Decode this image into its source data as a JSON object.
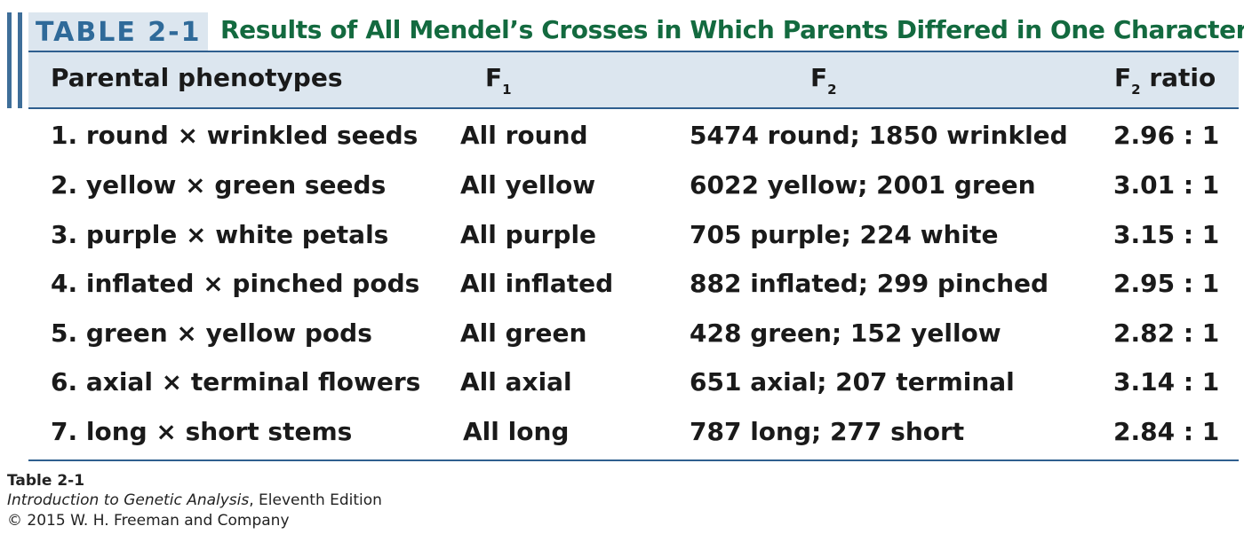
{
  "table_label": "TABLE 2-1",
  "title": "Results of All Mendel’s Crosses in Which Parents Differed in One Character",
  "headers": {
    "parental": "Parental phenotypes",
    "f1_main": "F",
    "f1_sub": "1",
    "f2_main": "F",
    "f2_sub": "2",
    "ratio_main": "F",
    "ratio_sub": "2",
    "ratio_rest": " ratio"
  },
  "rows": [
    {
      "parental": "1.  round × wrinkled seeds",
      "f1": "All round",
      "f2": "5474 round; 1850 wrinkled",
      "ratio": "2.96 : 1"
    },
    {
      "parental": "2.  yellow × green seeds",
      "f1": "All yellow",
      "f2": "6022 yellow; 2001 green",
      "ratio": "3.01 : 1"
    },
    {
      "parental": "3.  purple × white petals",
      "f1": "All purple",
      "f2": "705 purple; 224 white",
      "ratio": "3.15 : 1"
    },
    {
      "parental": "4.  inflated × pinched pods",
      "f1": "All inflated",
      "f2": "882 inflated; 299 pinched",
      "ratio": "2.95 : 1"
    },
    {
      "parental": "5.  green × yellow pods",
      "f1": "All green",
      "f2": "428 green; 152 yellow",
      "ratio": "2.82 : 1"
    },
    {
      "parental": "6.  axial × terminal flowers",
      "f1": "All axial",
      "f2": "651 axial; 207 terminal",
      "ratio": "3.14 : 1"
    },
    {
      "parental": "7.  long × short stems",
      "f1": "All long",
      "f2": "787 long; 277 short",
      "ratio": "2.84 : 1"
    }
  ],
  "footer": {
    "line1": "Table 2-1",
    "book_title": "Introduction to Genetic Analysis",
    "edition": ", Eleventh Edition",
    "copyright": "© 2015 W. H. Freeman and Company"
  },
  "colors": {
    "accent_blue": "#2f6a99",
    "band_blue": "#dce6ef",
    "title_green": "#136a3f"
  }
}
